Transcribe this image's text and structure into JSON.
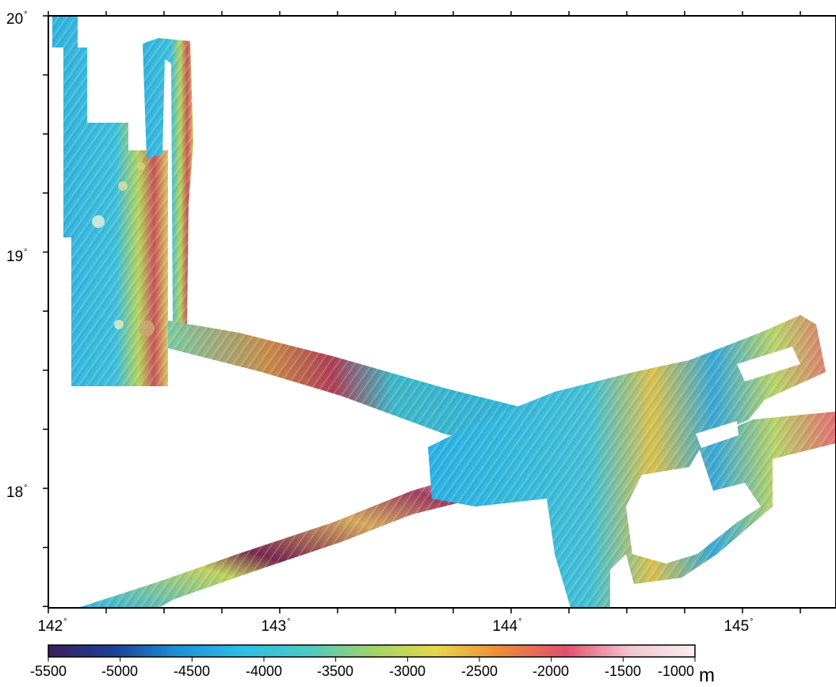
{
  "map": {
    "lon_labels": [
      {
        "value": "142",
        "deg": "°"
      },
      {
        "value": "143",
        "deg": "°"
      },
      {
        "value": "144",
        "deg": "°"
      },
      {
        "value": "145",
        "deg": "°"
      }
    ],
    "lat_labels": [
      {
        "value": "20",
        "deg": "°"
      },
      {
        "value": "19",
        "deg": "°"
      },
      {
        "value": "18",
        "deg": "°"
      }
    ],
    "extent": {
      "lon": [
        142.0,
        145.42
      ],
      "lat": [
        17.5,
        20.0
      ]
    }
  },
  "colorbar": {
    "ticks": [
      "-5500",
      "-5000",
      "-4500",
      "-4000",
      "-3500",
      "-3000",
      "-2500",
      "-2000",
      "-1500",
      "-1000"
    ],
    "unit": "m",
    "colors": [
      "#3b1f5a",
      "#1d3f97",
      "#1f8fd6",
      "#2fbde6",
      "#4cc9c4",
      "#9ed36c",
      "#e6d84a",
      "#ec8a3a",
      "#e0516e",
      "#f2c6cf",
      "#f8eef0"
    ]
  },
  "legend_texts": [
    "-5500",
    "-5000",
    "-4500",
    "-4000",
    "-3500",
    "-3000",
    "-2500",
    "-2000",
    "-1500",
    "-1000",
    "m"
  ]
}
